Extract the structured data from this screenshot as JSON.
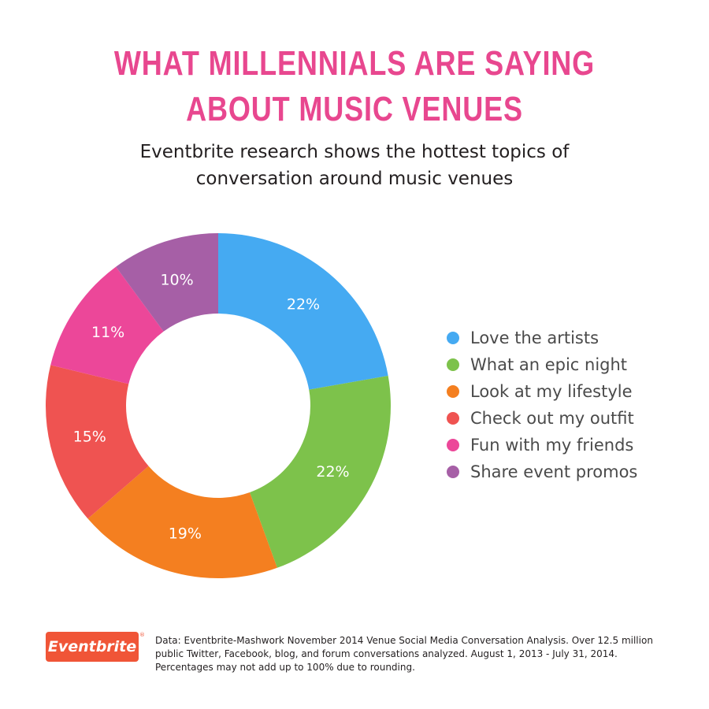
{
  "header": {
    "title": "WHAT MILLENNIALS ARE SAYING ABOUT MUSIC VENUES",
    "subtitle": "Eventbrite research shows the hottest topics of conversation around music venues"
  },
  "chart_data": {
    "type": "pie",
    "variant": "donut",
    "title": "WHAT MILLENNIALS ARE SAYING ABOUT MUSIC VENUES",
    "categories": [
      "Love the artists",
      "What an epic night",
      "Look at my lifestyle",
      "Check out my outfit",
      "Fun with my friends",
      "Share event promos"
    ],
    "values": [
      22,
      22,
      19,
      15,
      11,
      10
    ],
    "labels": [
      "22%",
      "22%",
      "19%",
      "15%",
      "11%",
      "10%"
    ],
    "colors": [
      "#45aaf2",
      "#7dc24b",
      "#f47f20",
      "#ef5351",
      "#ec4799",
      "#a65fa6"
    ],
    "legend_position": "right",
    "start": "top",
    "direction": "clockwise"
  },
  "footer": {
    "logo_text": "Eventbrite",
    "logo_reg": "®",
    "logo_color": "#f05537",
    "note": "Data: Eventbrite-Mashwork November 2014 Venue Social Media Conversation Analysis. Over 12.5 million public Twitter, Facebook, blog, and forum conversations analyzed. August 1, 2013 - July 31, 2014. Percentages may not add up to 100% due to rounding."
  },
  "theme": {
    "title_color": "#e8478f",
    "label_color": "#ffffff"
  }
}
